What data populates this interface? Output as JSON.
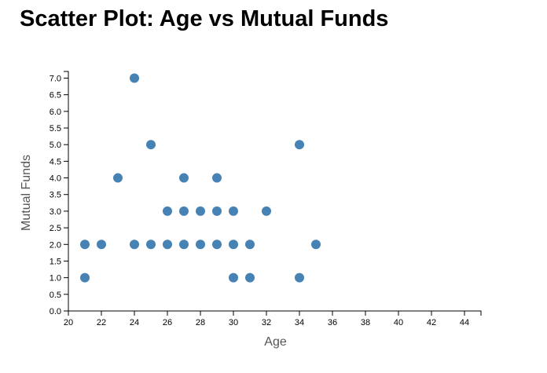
{
  "chart_data": {
    "type": "scatter",
    "title": "Scatter Plot: Age vs Mutual Funds",
    "xlabel": "Age",
    "ylabel": "Mutual Funds",
    "xlim": [
      20,
      45
    ],
    "ylim": [
      0,
      7.2
    ],
    "x_ticks": [
      20,
      22,
      24,
      26,
      28,
      30,
      32,
      34,
      36,
      38,
      40,
      42,
      44
    ],
    "y_ticks": [
      0.0,
      0.5,
      1.0,
      1.5,
      2.0,
      2.5,
      3.0,
      3.5,
      4.0,
      4.5,
      5.0,
      5.5,
      6.0,
      6.5,
      7.0
    ],
    "y_tick_decimals": 1,
    "grid": false,
    "point_color": "#4682b4",
    "axis_color": "#000000",
    "points": [
      {
        "x": 21,
        "y": 2
      },
      {
        "x": 21,
        "y": 1
      },
      {
        "x": 22,
        "y": 2
      },
      {
        "x": 23,
        "y": 4
      },
      {
        "x": 24,
        "y": 7
      },
      {
        "x": 24,
        "y": 2
      },
      {
        "x": 25,
        "y": 5
      },
      {
        "x": 25,
        "y": 2
      },
      {
        "x": 26,
        "y": 3
      },
      {
        "x": 26,
        "y": 2
      },
      {
        "x": 27,
        "y": 4
      },
      {
        "x": 27,
        "y": 3
      },
      {
        "x": 27,
        "y": 2
      },
      {
        "x": 28,
        "y": 3
      },
      {
        "x": 28,
        "y": 2
      },
      {
        "x": 29,
        "y": 4
      },
      {
        "x": 29,
        "y": 3
      },
      {
        "x": 29,
        "y": 2
      },
      {
        "x": 30,
        "y": 3
      },
      {
        "x": 30,
        "y": 2
      },
      {
        "x": 30,
        "y": 1
      },
      {
        "x": 31,
        "y": 2
      },
      {
        "x": 31,
        "y": 1
      },
      {
        "x": 32,
        "y": 3
      },
      {
        "x": 34,
        "y": 5
      },
      {
        "x": 34,
        "y": 1
      },
      {
        "x": 35,
        "y": 2
      }
    ]
  }
}
